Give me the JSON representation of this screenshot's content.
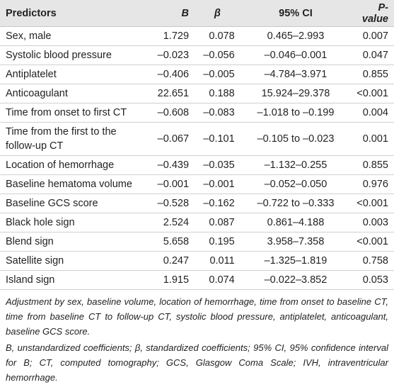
{
  "table": {
    "header": [
      "Predictors",
      "B",
      "β",
      "95% CI",
      "P-value"
    ],
    "rows": [
      [
        "Sex, male",
        "1.729",
        "0.078",
        "0.465–2.993",
        "0.007"
      ],
      [
        "Systolic blood pressure",
        "–0.023",
        "–0.056",
        "–0.046–0.001",
        "0.047"
      ],
      [
        "Antiplatelet",
        "–0.406",
        "–0.005",
        "–4.784–3.971",
        "0.855"
      ],
      [
        "Anticoagulant",
        "22.651",
        "0.188",
        "15.924–29.378",
        "<0.001"
      ],
      [
        "Time from onset to first CT",
        "–0.608",
        "–0.083",
        "–1.018 to –0.199",
        "0.004"
      ],
      [
        "Time from the first to the follow-up CT",
        "–0.067",
        "–0.101",
        "–0.105 to –0.023",
        "0.001"
      ],
      [
        "Location of hemorrhage",
        "–0.439",
        "–0.035",
        "–1.132–0.255",
        "0.855"
      ],
      [
        "Baseline hematoma volume",
        "–0.001",
        "–0.001",
        "–0.052–0.050",
        "0.976"
      ],
      [
        "Baseline GCS score",
        "–0.528",
        "–0.162",
        "–0.722 to –0.333",
        "<0.001"
      ],
      [
        "Black hole sign",
        "2.524",
        "0.087",
        "0.861–4.188",
        "0.003"
      ],
      [
        "Blend sign",
        "5.658",
        "0.195",
        "3.958–7.358",
        "<0.001"
      ],
      [
        "Satellite sign",
        "0.247",
        "0.011",
        "–1.325–1.819",
        "0.758"
      ],
      [
        "Island sign",
        "1.915",
        "0.074",
        "–0.022–3.852",
        "0.053"
      ]
    ]
  },
  "footnotes": [
    "Adjustment by sex, baseline volume, location of hemorrhage, time from onset to baseline CT, time from baseline CT to follow-up CT, systolic blood pressure, antiplatelet, anticoagulant, baseline GCS score.",
    "B, unstandardized coefficients; β, standardized coefficients; 95% CI, 95% confidence interval for B; CT, computed tomography; GCS, Glasgow Coma Scale; IVH, intraventricular hemorrhage."
  ]
}
